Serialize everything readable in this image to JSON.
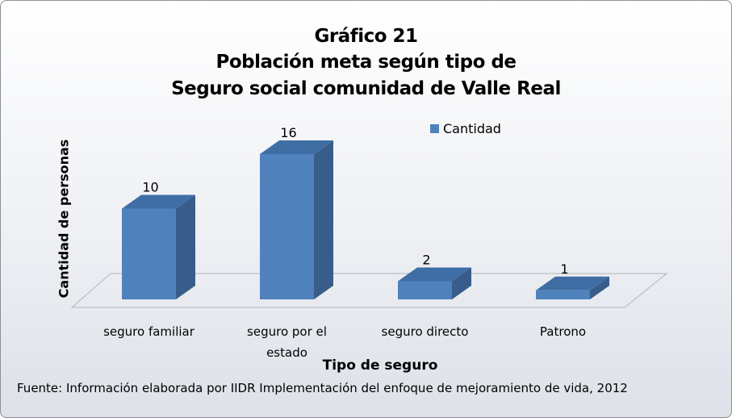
{
  "chart_data": {
    "type": "bar3d",
    "title": "Gráfico 21",
    "subtitle": [
      "Población meta según tipo de",
      "Seguro social comunidad de Valle Real"
    ],
    "y_label": "Cantidad de personas",
    "x_label": "Tipo de seguro",
    "categories": [
      "seguro familiar",
      "seguro por el estado",
      "seguro directo",
      "Patrono"
    ],
    "series": [
      {
        "name": "Cantidad",
        "color": "#4f81bd",
        "values": [
          10,
          16,
          2,
          1
        ]
      }
    ],
    "legend": "top-right",
    "source": "Fuente: Información elaborada por IIDR Implementación del enfoque de mejoramiento de vida, 2012"
  }
}
